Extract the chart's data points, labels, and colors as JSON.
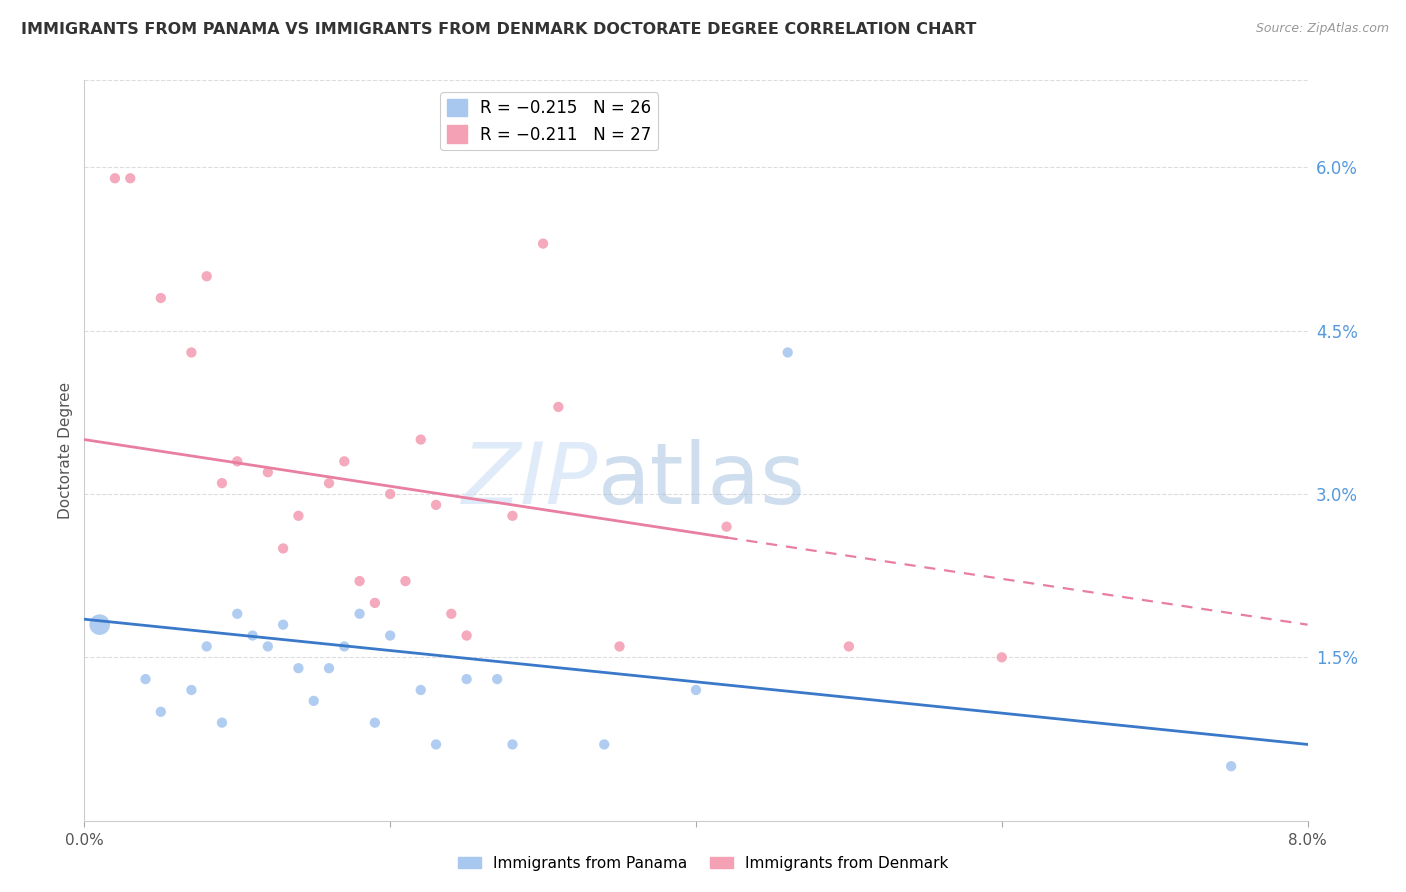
{
  "title": "IMMIGRANTS FROM PANAMA VS IMMIGRANTS FROM DENMARK DOCTORATE DEGREE CORRELATION CHART",
  "source": "Source: ZipAtlas.com",
  "ylabel": "Doctorate Degree",
  "xlim": [
    0,
    0.08
  ],
  "ylim": [
    0,
    0.068
  ],
  "xticks": [
    0.0,
    0.02,
    0.04,
    0.06,
    0.08
  ],
  "xtick_labels": [
    "0.0%",
    "",
    "",
    "",
    "8.0%"
  ],
  "yticks_right": [
    0.015,
    0.03,
    0.045,
    0.06
  ],
  "ytick_labels_right": [
    "1.5%",
    "3.0%",
    "4.5%",
    "6.0%"
  ],
  "panama_x": [
    0.001,
    0.004,
    0.005,
    0.007,
    0.008,
    0.009,
    0.01,
    0.011,
    0.012,
    0.013,
    0.014,
    0.015,
    0.016,
    0.017,
    0.018,
    0.019,
    0.02,
    0.022,
    0.023,
    0.025,
    0.027,
    0.028,
    0.034,
    0.04,
    0.046,
    0.075
  ],
  "panama_y": [
    0.018,
    0.013,
    0.01,
    0.012,
    0.016,
    0.009,
    0.019,
    0.017,
    0.016,
    0.018,
    0.014,
    0.011,
    0.014,
    0.016,
    0.019,
    0.009,
    0.017,
    0.012,
    0.007,
    0.013,
    0.013,
    0.007,
    0.007,
    0.012,
    0.043,
    0.005
  ],
  "panama_large": [
    0
  ],
  "denmark_x": [
    0.002,
    0.003,
    0.005,
    0.007,
    0.008,
    0.009,
    0.01,
    0.012,
    0.013,
    0.014,
    0.016,
    0.017,
    0.018,
    0.019,
    0.02,
    0.021,
    0.022,
    0.023,
    0.024,
    0.025,
    0.028,
    0.03,
    0.031,
    0.035,
    0.042,
    0.05,
    0.06
  ],
  "denmark_y": [
    0.059,
    0.059,
    0.048,
    0.043,
    0.05,
    0.031,
    0.033,
    0.032,
    0.025,
    0.028,
    0.031,
    0.033,
    0.022,
    0.02,
    0.03,
    0.022,
    0.035,
    0.029,
    0.019,
    0.017,
    0.028,
    0.053,
    0.038,
    0.016,
    0.027,
    0.016,
    0.015
  ],
  "blue_line_x0": 0.0,
  "blue_line_y0": 0.0185,
  "blue_line_x1": 0.08,
  "blue_line_y1": 0.007,
  "pink_line_x0": 0.0,
  "pink_line_y0": 0.035,
  "pink_line_x1_solid": 0.042,
  "pink_line_y1_solid": 0.026,
  "pink_line_x1_dashed": 0.08,
  "pink_line_y1_dashed": 0.018,
  "blue_line_color": "#3a78c9",
  "pink_line_color": "#e87fa0",
  "blue_scatter_color": "#a8c8f0",
  "pink_scatter_color": "#f4a0b5",
  "watermark_zip": "ZIP",
  "watermark_atlas": "atlas",
  "background_color": "#ffffff",
  "grid_color": "#dddddd"
}
